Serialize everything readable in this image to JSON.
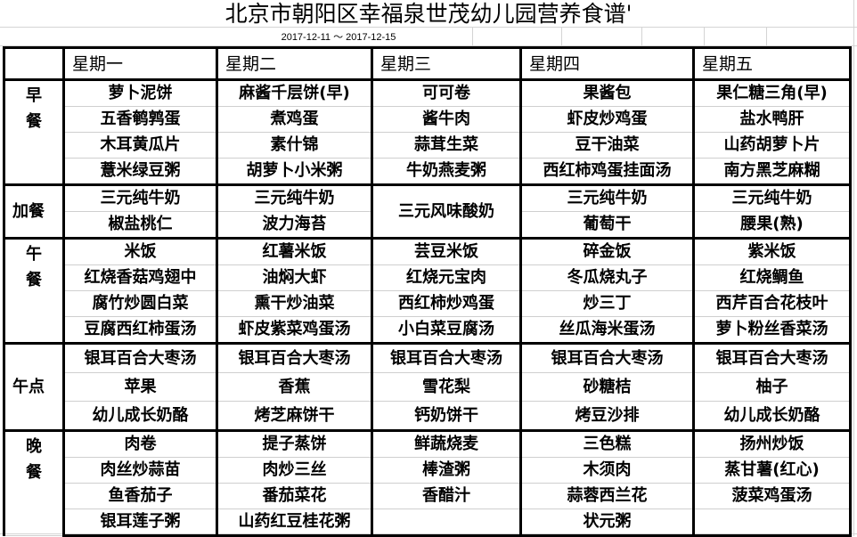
{
  "title": "北京市朝阳区幸福泉世茂幼儿园营养食谱'",
  "date_range": "2017-12-11 ～ 2017-12-15",
  "days": [
    "星期一",
    "星期二",
    "星期三",
    "星期四",
    "星期五"
  ],
  "meals": [
    {
      "label": "早餐",
      "label_lines": [
        "早",
        "餐"
      ],
      "rows": [
        [
          "萝卜泥饼",
          "麻酱千层饼(早)",
          "可可卷",
          "果酱包",
          "果仁糖三角(早)"
        ],
        [
          "五香鹌鹑蛋",
          "煮鸡蛋",
          "酱牛肉",
          "虾皮炒鸡蛋",
          "盐水鸭肝"
        ],
        [
          "木耳黄瓜片",
          "素什锦",
          "蒜茸生菜",
          "豆干油菜",
          "山药胡萝卜片"
        ],
        [
          "薏米绿豆粥",
          "胡萝卜小米粥",
          "牛奶燕麦粥",
          "西红柿鸡蛋挂面汤",
          "南方黑芝麻糊"
        ]
      ]
    },
    {
      "label": "加餐",
      "label_lines": [
        "加餐"
      ],
      "rows": [
        [
          "三元纯牛奶",
          "三元纯牛奶",
          "三元风味酸奶",
          "三元纯牛奶",
          "三元纯牛奶"
        ],
        [
          "椒盐桃仁",
          "波力海苔",
          null,
          "葡萄干",
          "腰果(熟)"
        ]
      ]
    },
    {
      "label": "午餐",
      "label_lines": [
        "午",
        "餐"
      ],
      "rows": [
        [
          "米饭",
          "红薯米饭",
          "芸豆米饭",
          "碎金饭",
          "紫米饭"
        ],
        [
          "红烧香菇鸡翅中",
          "油焖大虾",
          "红烧元宝肉",
          "冬瓜烧丸子",
          "红烧鲷鱼"
        ],
        [
          "腐竹炒圆白菜",
          "熏干炒油菜",
          "西红柿炒鸡蛋",
          "炒三丁",
          "西芹百合花枝叶"
        ],
        [
          "豆腐西红柿蛋汤",
          "虾皮紫菜鸡蛋汤",
          "小白菜豆腐汤",
          "丝瓜海米蛋汤",
          "萝卜粉丝香菜汤"
        ]
      ]
    },
    {
      "label": "午点",
      "label_lines": [
        "午点"
      ],
      "rows": [
        [
          "银耳百合大枣汤",
          "银耳百合大枣汤",
          "银耳百合大枣汤",
          "银耳百合大枣汤",
          "银耳百合大枣汤"
        ],
        [
          "苹果",
          "香蕉",
          "雪花梨",
          "砂糖桔",
          "柚子"
        ],
        [
          "幼儿成长奶酪",
          "烤芝麻饼干",
          "钙奶饼干",
          "烤豆沙排",
          "幼儿成长奶酪"
        ]
      ]
    },
    {
      "label": "晚餐",
      "label_lines": [
        "晚",
        "餐"
      ],
      "rows": [
        [
          "肉卷",
          "提子蒸饼",
          "鲜蔬烧麦",
          "三色糕",
          "扬州炒饭"
        ],
        [
          "肉丝炒蒜苗",
          "肉炒三丝",
          "棒渣粥",
          "木须肉",
          "蒸甘薯(红心)"
        ],
        [
          "鱼香茄子",
          "番茄菜花",
          "香醋汁",
          "蒜蓉西兰花",
          "菠菜鸡蛋汤"
        ],
        [
          "银耳莲子粥",
          "山药红豆桂花粥",
          "",
          "状元粥",
          ""
        ]
      ]
    }
  ]
}
